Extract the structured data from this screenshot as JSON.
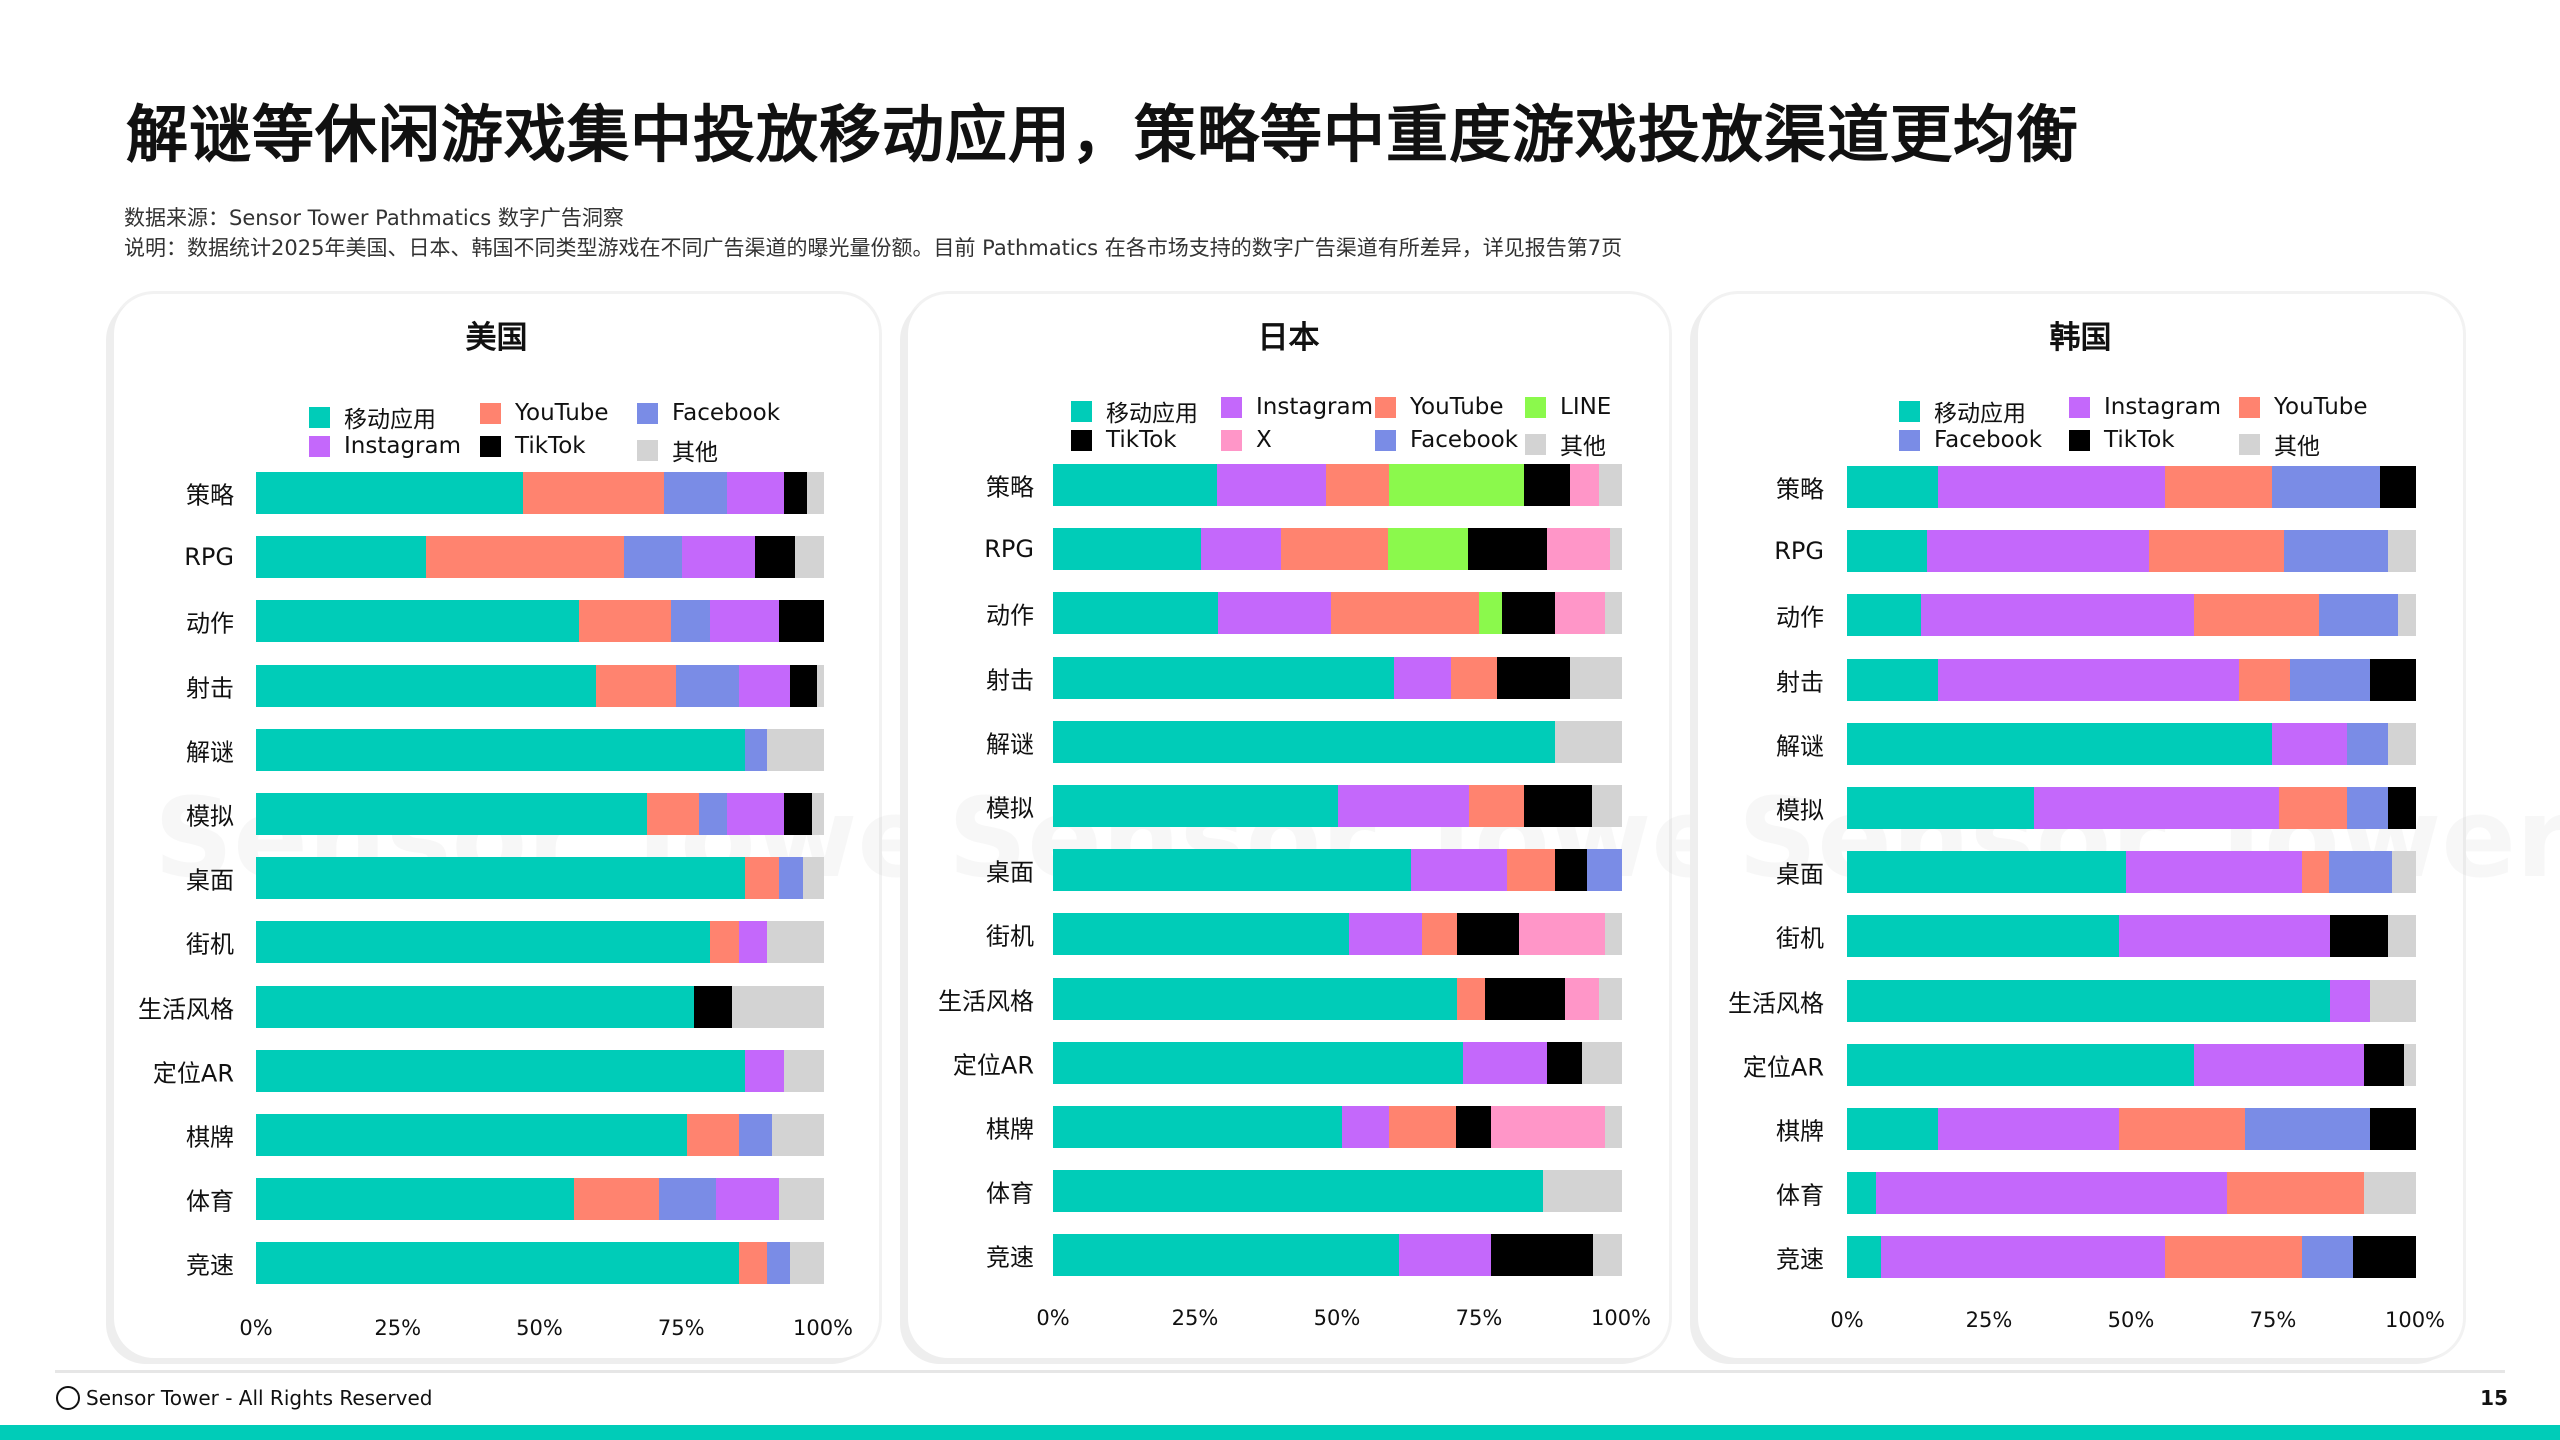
{
  "title": "解谜等休闲游戏集中投放移动应用，策略等中重度游戏投放渠道更均衡",
  "source_line": "数据来源：Sensor Tower  Pathmatics  数字广告洞察",
  "note_line": "说明：数据统计2025年美国、日本、韩国不同类型游戏在不同广告渠道的曝光量份额。目前 Pathmatics 在各市场支持的数字广告渠道有所差异，详见报告第7页",
  "footer": {
    "brand": "Sensor Tower - All Rights Reserved",
    "page_number": "15",
    "accent": "#00CCB8"
  },
  "watermark": "Sensor Tower",
  "chart_data": [
    {
      "type": "bar",
      "orientation": "horizontal",
      "stacked": true,
      "title": "美国",
      "xlim": [
        0,
        100
      ],
      "x_ticks": [
        "0%",
        "25%",
        "50%",
        "75%",
        "100%"
      ],
      "legend_position": "top",
      "categories": [
        "策略",
        "RPG",
        "动作",
        "射击",
        "解谜",
        "模拟",
        "桌面",
        "街机",
        "生活风格",
        "定位AR",
        "棋牌",
        "体育",
        "竞速"
      ],
      "series": [
        {
          "name": "移动应用",
          "color": "#00CCB8",
          "values": [
            47.1,
            30.0,
            57.0,
            60.0,
            86.2,
            69.0,
            86.2,
            80.1,
            77.2,
            86.2,
            76.0,
            56.1,
            85.2
          ]
        },
        {
          "name": "YouTube",
          "color": "#FF836F",
          "values": [
            24.9,
            34.9,
            16.2,
            14.1,
            0,
            9.1,
            6.1,
            5.1,
            0,
            0,
            9.2,
            15.0,
            4.9
          ]
        },
        {
          "name": "Facebook",
          "color": "#7A8CE6",
          "values": [
            11.1,
            10.3,
            6.9,
            11.1,
            3.9,
            5.0,
            4.1,
            0,
            0,
            0,
            5.8,
            10.1,
            4.1
          ]
        },
        {
          "name": "Instagram",
          "color": "#C468FB",
          "values": [
            10.0,
            12.8,
            12.2,
            9.0,
            0,
            10.0,
            0,
            4.9,
            0,
            7.0,
            0,
            11.1,
            0
          ]
        },
        {
          "name": "TikTok",
          "color": "#000000",
          "values": [
            4.1,
            7.0,
            7.7,
            4.8,
            0,
            5.0,
            0,
            0,
            6.8,
            0,
            0,
            0,
            0
          ]
        },
        {
          "name": "其他",
          "color": "#D3D3D3",
          "values": [
            2.8,
            5.0,
            0,
            1.0,
            9.9,
            1.9,
            3.6,
            9.9,
            16.0,
            6.8,
            9.0,
            7.7,
            5.8
          ]
        }
      ]
    },
    {
      "type": "bar",
      "orientation": "horizontal",
      "stacked": true,
      "title": "日本",
      "xlim": [
        0,
        100
      ],
      "x_ticks": [
        "0%",
        "25%",
        "50%",
        "75%",
        "100%"
      ],
      "legend_position": "top",
      "categories": [
        "策略",
        "RPG",
        "动作",
        "射击",
        "解谜",
        "模拟",
        "桌面",
        "街机",
        "生活风格",
        "定位AR",
        "棋牌",
        "体育",
        "竞速"
      ],
      "series": [
        {
          "name": "移动应用",
          "color": "#00CCB8",
          "values": [
            28.9,
            26.0,
            29.0,
            60.1,
            88.3,
            50.1,
            63.0,
            52.1,
            71.1,
            72.1,
            50.9,
            86.2,
            61.0
          ]
        },
        {
          "name": "Instagram",
          "color": "#C468FB",
          "values": [
            19.1,
            14.1,
            19.9,
            10.0,
            0,
            23.2,
            17.0,
            12.9,
            0,
            14.9,
            8.3,
            0,
            16.1
          ]
        },
        {
          "name": "YouTube",
          "color": "#FF836F",
          "values": [
            11.2,
            18.9,
            26.1,
            8.1,
            0,
            9.6,
            8.3,
            6.1,
            5.0,
            0,
            11.8,
            0,
            0
          ]
        },
        {
          "name": "LINE",
          "color": "#8BF94C",
          "values": [
            23.7,
            14.0,
            4.1,
            0,
            0,
            0,
            0,
            0,
            0,
            0,
            0,
            0,
            0
          ]
        },
        {
          "name": "TikTok",
          "color": "#000000",
          "values": [
            8.2,
            14.0,
            9.2,
            12.9,
            0,
            12.0,
            5.8,
            11.0,
            14.1,
            6.2,
            6.1,
            0,
            18.0
          ]
        },
        {
          "name": "X",
          "color": "#FF96C8",
          "values": [
            5.1,
            11.0,
            8.9,
            0,
            0,
            0,
            0,
            15.1,
            6.0,
            0,
            20.1,
            0,
            0
          ]
        },
        {
          "name": "Facebook",
          "color": "#7A8CE6",
          "values": [
            0,
            0,
            0,
            0,
            0,
            0,
            5.9,
            0,
            0,
            0,
            0,
            0,
            0
          ]
        },
        {
          "name": "其他",
          "color": "#D3D3D3",
          "values": [
            3.8,
            2.0,
            2.8,
            8.9,
            11.7,
            5.1,
            0,
            2.8,
            3.8,
            6.8,
            2.8,
            13.8,
            4.9
          ]
        }
      ]
    },
    {
      "type": "bar",
      "orientation": "horizontal",
      "stacked": true,
      "title": "韩国",
      "xlim": [
        0,
        100
      ],
      "x_ticks": [
        "0%",
        "25%",
        "50%",
        "75%",
        "100%"
      ],
      "legend_position": "top",
      "categories": [
        "策略",
        "RPG",
        "动作",
        "射击",
        "解谜",
        "模拟",
        "桌面",
        "街机",
        "生活风格",
        "定位AR",
        "棋牌",
        "体育",
        "竞速"
      ],
      "series": [
        {
          "name": "移动应用",
          "color": "#00CCB8",
          "values": [
            16.1,
            14.0,
            13.0,
            16.1,
            74.9,
            33.0,
            49.2,
            47.9,
            85.1,
            61.1,
            16.1,
            5.1,
            5.9
          ]
        },
        {
          "name": "Instagram",
          "color": "#C468FB",
          "values": [
            39.8,
            39.1,
            48.1,
            53.0,
            13.2,
            43.0,
            30.9,
            37.2,
            6.9,
            30.0,
            31.8,
            61.8,
            50.0
          ]
        },
        {
          "name": "YouTube",
          "color": "#FF836F",
          "values": [
            19.0,
            23.8,
            22.0,
            8.9,
            0,
            12.0,
            4.8,
            0,
            0,
            0,
            22.1,
            24.2,
            24.2
          ]
        },
        {
          "name": "Facebook",
          "color": "#7A8CE6",
          "values": [
            19.0,
            18.3,
            13.9,
            14.0,
            7.1,
            7.2,
            11.1,
            0,
            0,
            0,
            22.1,
            0,
            8.9
          ]
        },
        {
          "name": "TikTok",
          "color": "#000000",
          "values": [
            6.1,
            0,
            0,
            8.0,
            0,
            4.8,
            0,
            10.1,
            0,
            7.0,
            7.9,
            0,
            11.0
          ]
        },
        {
          "name": "其他",
          "color": "#D3D3D3",
          "values": [
            0,
            4.8,
            3.0,
            0,
            4.8,
            0,
            4.0,
            4.8,
            8.0,
            1.9,
            0,
            8.9,
            0
          ]
        }
      ]
    }
  ]
}
